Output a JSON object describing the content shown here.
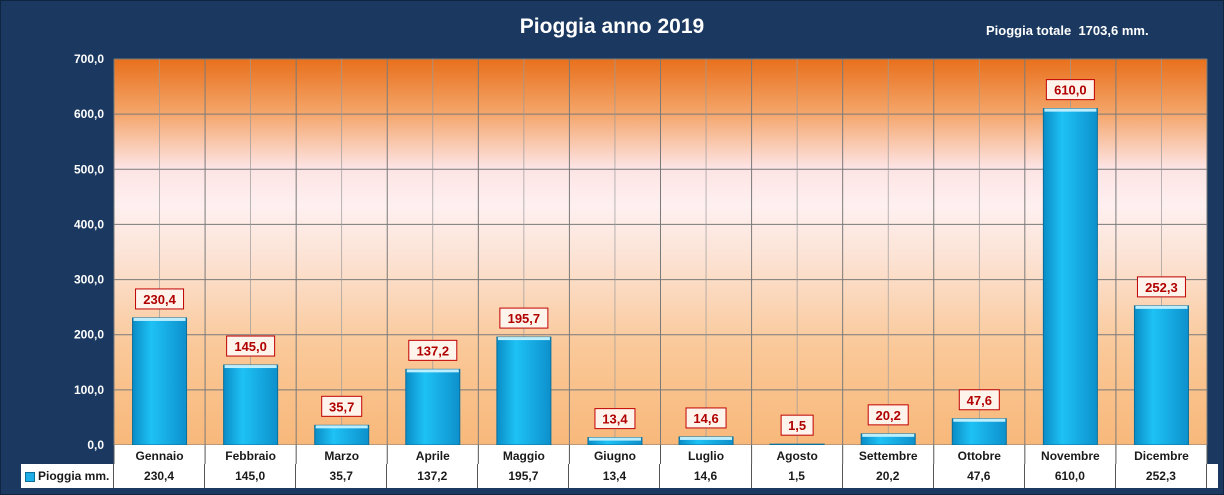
{
  "total_label": "Pioggia totale  1703,6 mm.",
  "chart_data": {
    "type": "bar",
    "title": "Pioggia anno 2019",
    "categories": [
      "Gennaio",
      "Febbraio",
      "Marzo",
      "Aprile",
      "Maggio",
      "Giugno",
      "Luglio",
      "Agosto",
      "Settembre",
      "Ottobre",
      "Novembre",
      "Dicembre"
    ],
    "series": [
      {
        "name": "Pioggia mm.",
        "values": [
          230.4,
          145.0,
          35.7,
          137.2,
          195.7,
          13.4,
          14.6,
          1.5,
          20.2,
          47.6,
          610.0,
          252.3
        ]
      }
    ],
    "value_labels": [
      "230,4",
      "145,0",
      "35,7",
      "137,2",
      "195,7",
      "13,4",
      "14,6",
      "1,5",
      "20,2",
      "47,6",
      "610,0",
      "252,3"
    ],
    "y_ticks": [
      "0,0",
      "100,0",
      "200,0",
      "300,0",
      "400,0",
      "500,0",
      "600,0",
      "700,0"
    ],
    "ylim": [
      0,
      700
    ],
    "xlabel": "",
    "ylabel": "",
    "grid": true,
    "legend": "bottom-left in data table",
    "colors": {
      "bar": "#1eaee8",
      "bar_dark": "#0b7fb5",
      "label_text": "#b00000",
      "label_border": "#c00000",
      "frame": "#1b3960"
    }
  }
}
